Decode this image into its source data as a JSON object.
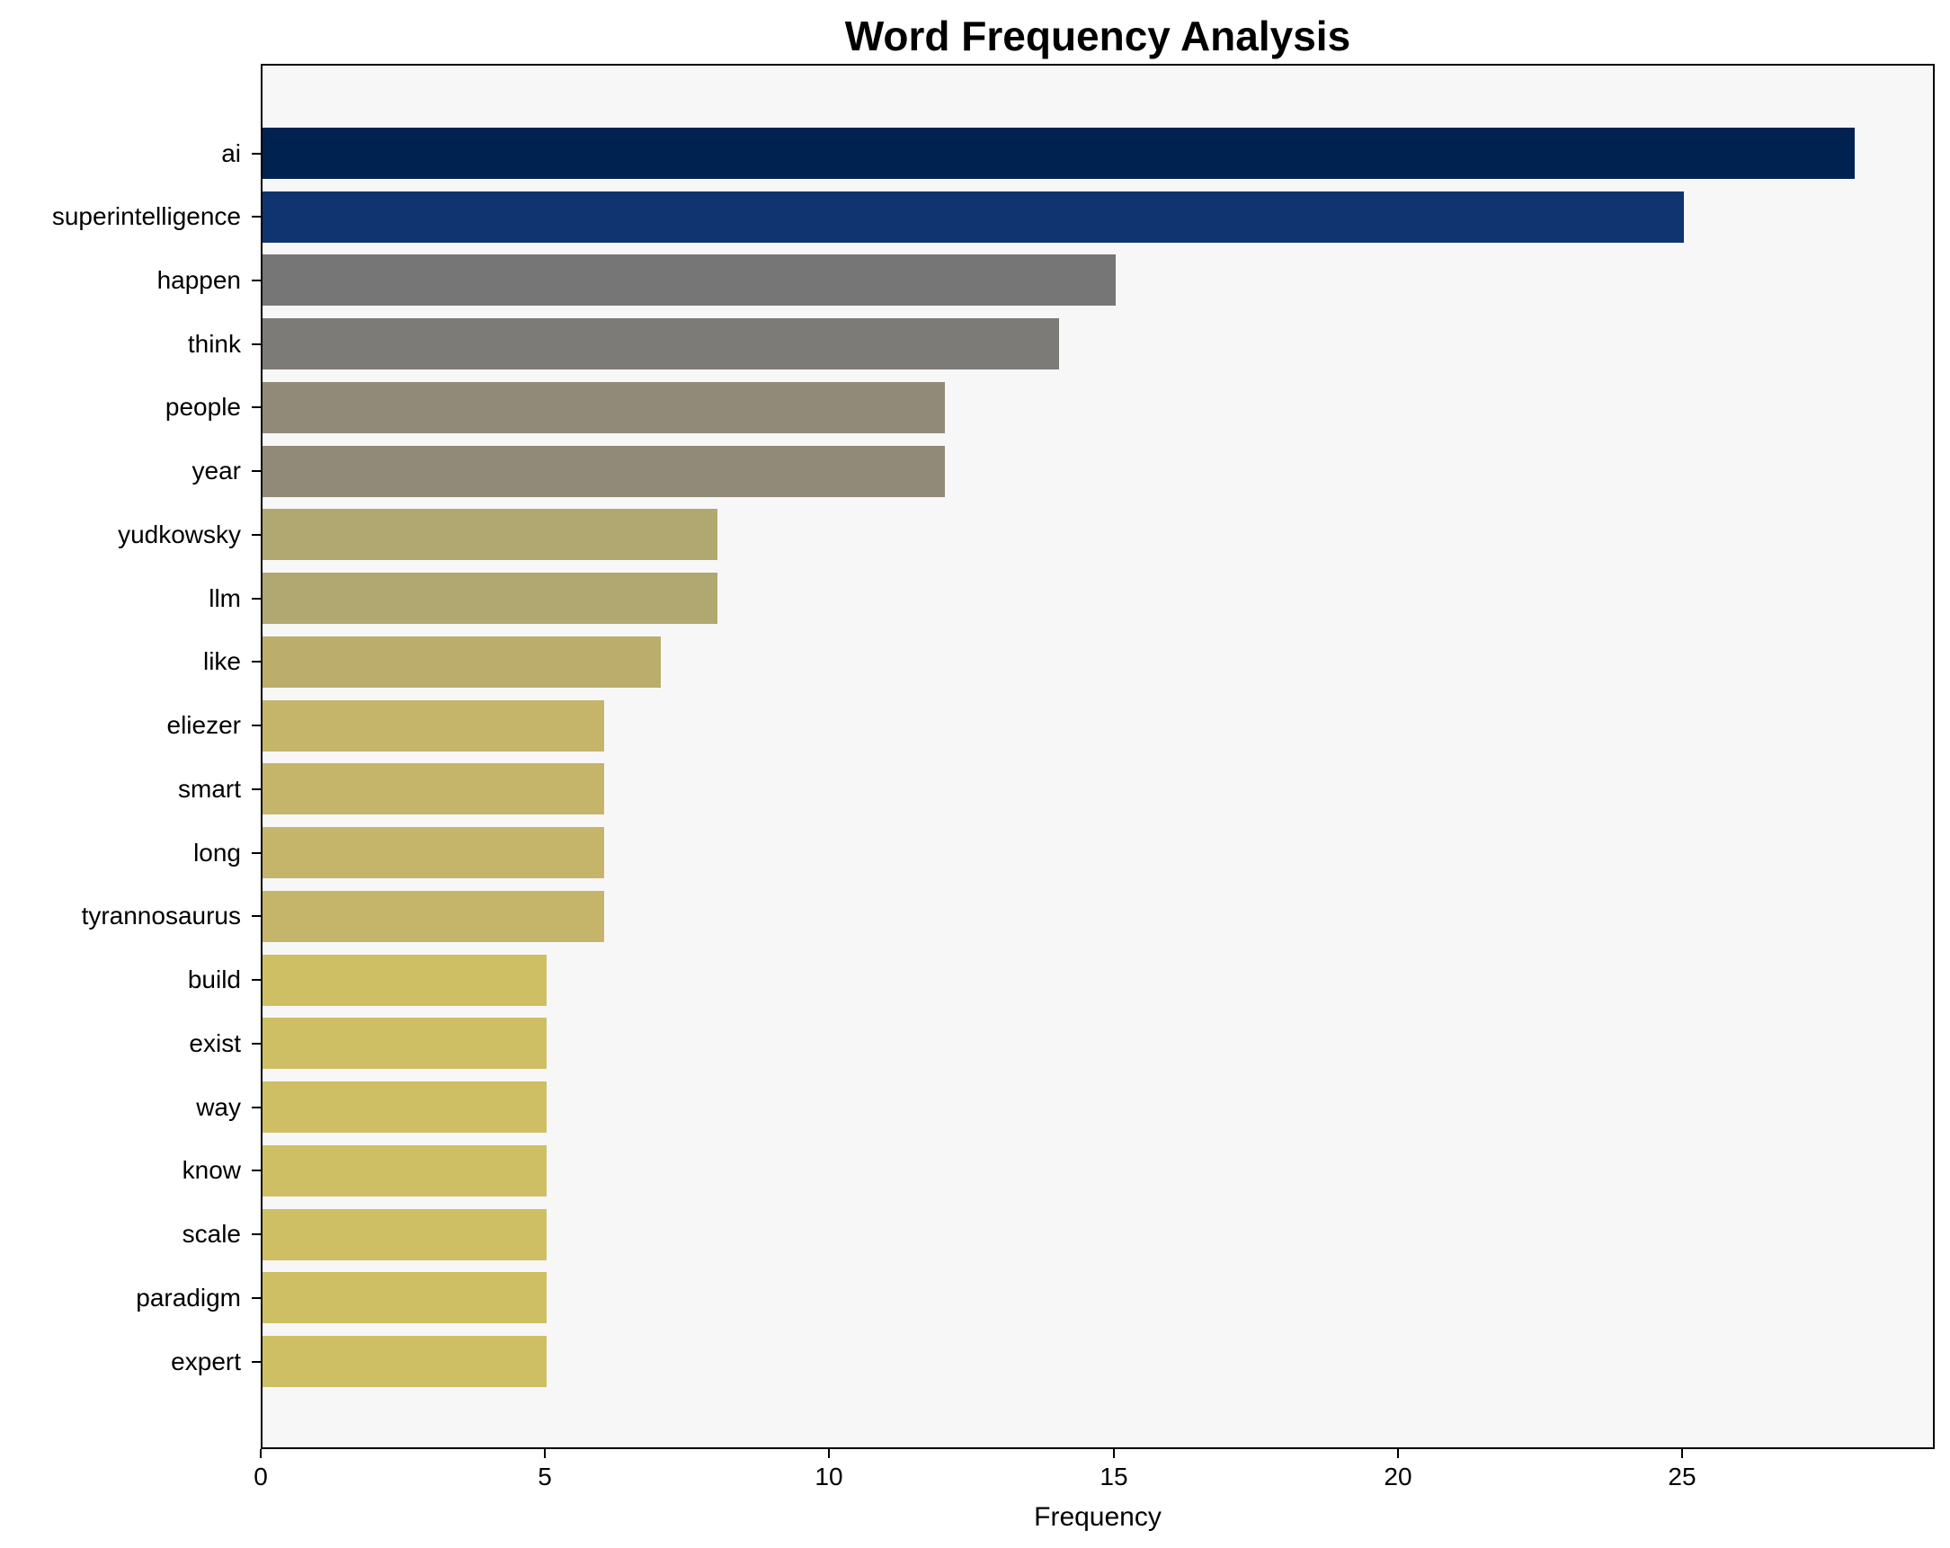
{
  "chart_data": {
    "type": "bar",
    "orientation": "horizontal",
    "title": "Word Frequency Analysis",
    "xlabel": "Frequency",
    "ylabel": "",
    "xlim": [
      0,
      29.4
    ],
    "xticks": [
      0,
      5,
      10,
      15,
      20,
      25
    ],
    "grid": false,
    "legend": null,
    "categories": [
      "ai",
      "superintelligence",
      "happen",
      "think",
      "people",
      "year",
      "yudkowsky",
      "llm",
      "like",
      "eliezer",
      "smart",
      "long",
      "tyrannosaurus",
      "build",
      "exist",
      "way",
      "know",
      "scale",
      "paradigm",
      "expert"
    ],
    "values": [
      28,
      25,
      15,
      14,
      12,
      12,
      8,
      8,
      7,
      6,
      6,
      6,
      6,
      5,
      5,
      5,
      5,
      5,
      5,
      5
    ],
    "colors": [
      "#002251",
      "#0f346f",
      "#767676",
      "#7c7b78",
      "#918a78",
      "#918a78",
      "#b1a770",
      "#b1a770",
      "#bbad6c",
      "#c5b56b",
      "#c5b56b",
      "#c5b56b",
      "#c5b56b",
      "#cfbf64",
      "#cfbf64",
      "#cfbf64",
      "#cfbf64",
      "#cfbf64",
      "#cfbf64",
      "#cfbf64"
    ]
  },
  "labels": {
    "title": "Word Frequency Analysis",
    "xlabel": "Frequency",
    "xticks": [
      "0",
      "5",
      "10",
      "15",
      "20",
      "25"
    ]
  },
  "colors": {
    "plot_background": "#f7f7f7",
    "page_background": "#ffffff"
  }
}
